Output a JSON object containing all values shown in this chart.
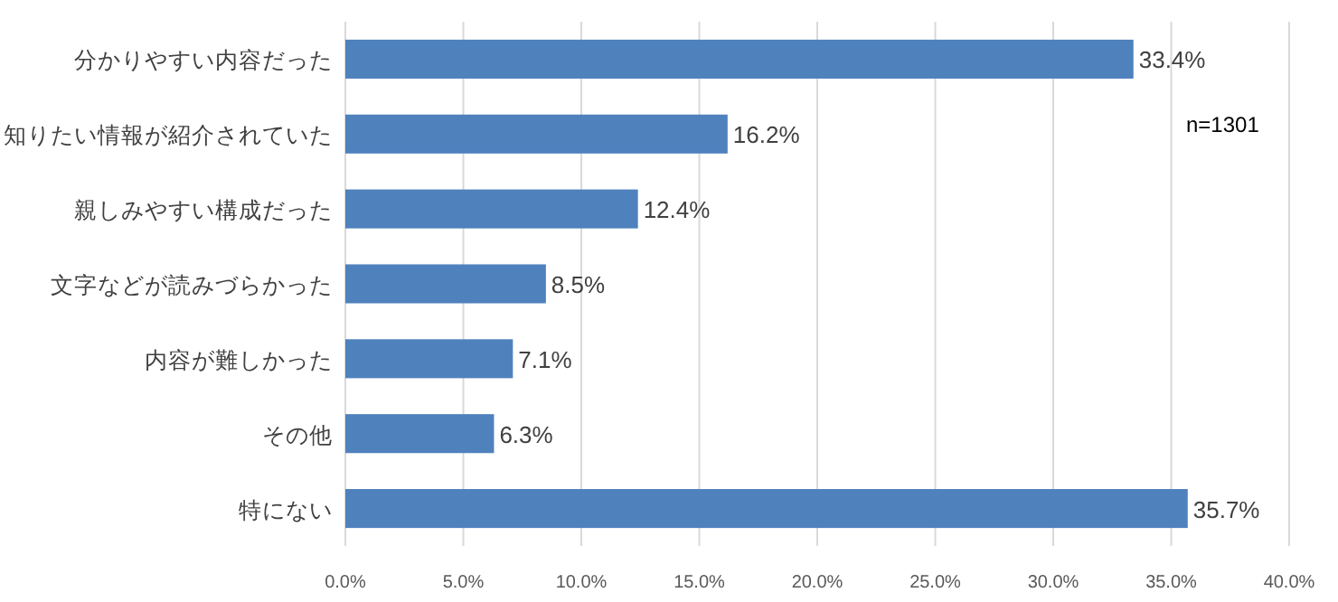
{
  "chart_data": {
    "type": "bar",
    "orientation": "horizontal",
    "categories": [
      "分かりやすい内容だった",
      "知りたい情報が紹介されていた",
      "親しみやすい構成だった",
      "文字などが読みづらかった",
      "内容が難しかった",
      "その他",
      "特にない"
    ],
    "values": [
      33.4,
      16.2,
      12.4,
      8.5,
      7.1,
      6.3,
      35.7
    ],
    "value_labels": [
      "33.4%",
      "16.2%",
      "12.4%",
      "8.5%",
      "7.1%",
      "6.3%",
      "35.7%"
    ],
    "color": "#4f81bd",
    "xlim": [
      0,
      40
    ],
    "xticks": [
      {
        "value": 0,
        "label": "0.0%"
      },
      {
        "value": 5,
        "label": "5.0%"
      },
      {
        "value": 10,
        "label": "10.0%"
      },
      {
        "value": 15,
        "label": "15.0%"
      },
      {
        "value": 20,
        "label": "20.0%"
      },
      {
        "value": 25,
        "label": "25.0%"
      },
      {
        "value": 30,
        "label": "30.0%"
      },
      {
        "value": 35,
        "label": "35.0%"
      },
      {
        "value": 40,
        "label": "40.0%"
      }
    ],
    "grid": "x",
    "annotations": [
      "n=1301"
    ]
  }
}
